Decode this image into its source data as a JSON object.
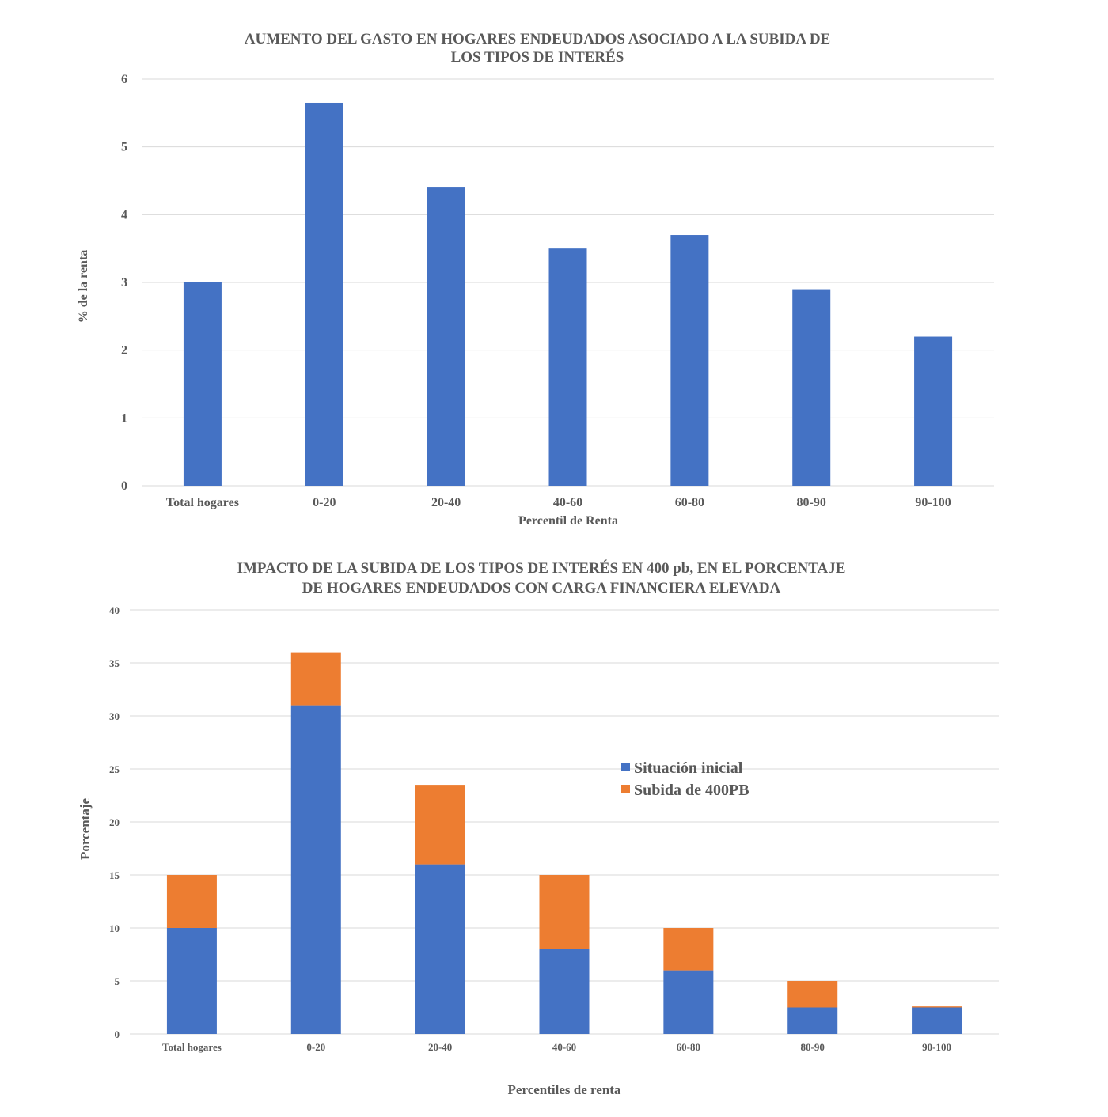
{
  "chart_data": [
    {
      "type": "bar",
      "title": "AUMENTO DEL GASTO EN HOGARES ENDEUDADOS ASOCIADO A LA SUBIDA DE LOS TIPOS DE INTERÉS",
      "title_lines": [
        "AUMENTO DEL GASTO EN HOGARES ENDEUDADOS ASOCIADO A LA SUBIDA DE",
        "LOS TIPOS DE INTERÉS"
      ],
      "xlabel": "Percentil de Renta",
      "ylabel": "% de la renta",
      "categories": [
        "Total hogares",
        "0-20",
        "20-40",
        "40-60",
        "60-80",
        "80-90",
        "90-100"
      ],
      "values": [
        3.0,
        5.65,
        4.4,
        3.5,
        3.7,
        2.9,
        2.2
      ],
      "ylim": [
        0,
        6
      ],
      "yticks": [
        0,
        1,
        2,
        3,
        4,
        5,
        6
      ],
      "grid": true,
      "legend": "none",
      "colors": {
        "bar": "#4472C4"
      }
    },
    {
      "type": "bar",
      "stacked": true,
      "title": "IMPACTO DE LA SUBIDA DE LOS TIPOS DE INTERÉS EN 400 pb, EN EL PORCENTAJE DE HOGARES ENDEUDADOS  CON CARGA FINANCIERA ELEVADA",
      "title_lines": [
        "IMPACTO DE LA SUBIDA DE LOS TIPOS DE INTERÉS EN 400 pb, EN EL PORCENTAJE",
        "DE HOGARES ENDEUDADOS  CON CARGA FINANCIERA ELEVADA"
      ],
      "xlabel": "Percentiles de renta",
      "ylabel": "Porcentaje",
      "categories": [
        "Total hogares",
        "0-20",
        "20-40",
        "40-60",
        "60-80",
        "80-90",
        "90-100"
      ],
      "series": [
        {
          "name": "Situación inicial",
          "color": "#4472C4",
          "values": [
            10,
            31,
            16,
            8,
            6,
            2.5,
            2.5
          ]
        },
        {
          "name": "Subida de 400PB",
          "color": "#ED7D31",
          "values": [
            5,
            5,
            7.5,
            7,
            4,
            2.5,
            0.1
          ]
        }
      ],
      "ylim": [
        0,
        40
      ],
      "yticks": [
        0,
        5,
        10,
        15,
        20,
        25,
        30,
        35,
        40
      ],
      "grid": true,
      "legend": "center-right"
    }
  ]
}
